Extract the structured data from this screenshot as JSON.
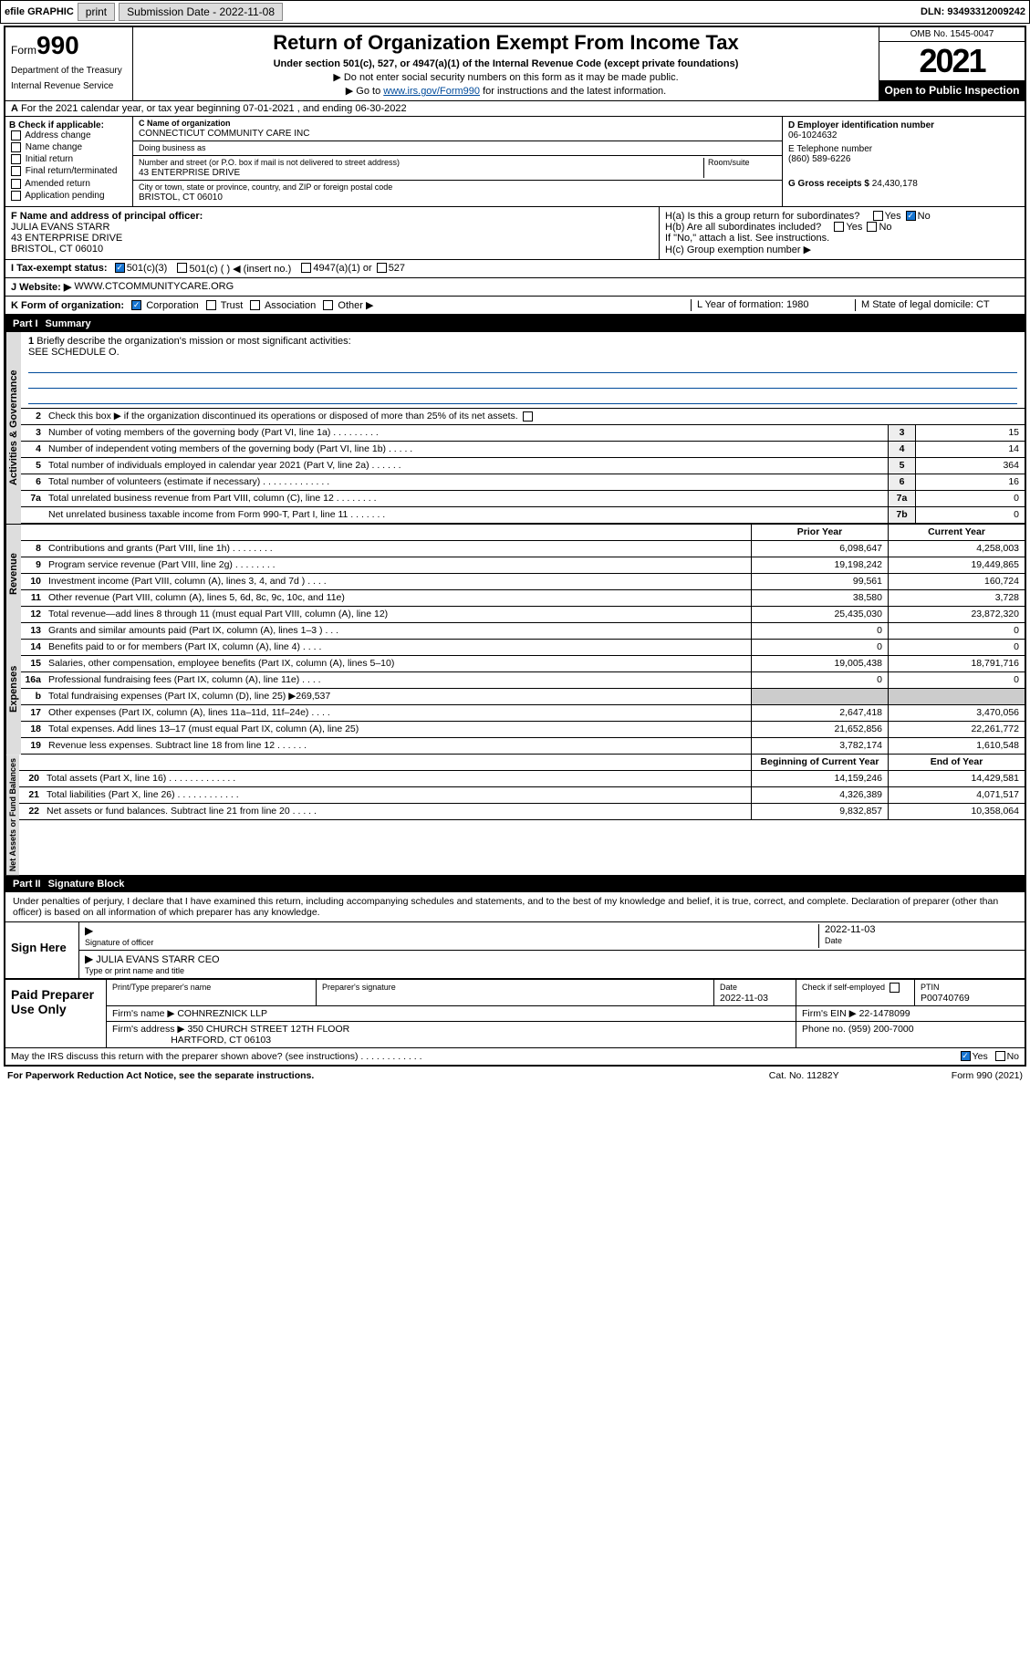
{
  "topbar": {
    "efile": "efile GRAPHIC",
    "print": "print",
    "subdate_label": "Submission Date - 2022-11-08",
    "dln": "DLN: 93493312009242"
  },
  "header": {
    "form_prefix": "Form",
    "form_num": "990",
    "title": "Return of Organization Exempt From Income Tax",
    "subtitle": "Under section 501(c), 527, or 4947(a)(1) of the Internal Revenue Code (except private foundations)",
    "note1": "▶ Do not enter social security numbers on this form as it may be made public.",
    "note2_pre": "▶ Go to ",
    "note2_link": "www.irs.gov/Form990",
    "note2_post": " for instructions and the latest information.",
    "dept": "Department of the Treasury",
    "irs": "Internal Revenue Service",
    "omb": "OMB No. 1545-0047",
    "year": "2021",
    "inspect": "Open to Public Inspection"
  },
  "sectionA": {
    "tax_year": "For the 2021 calendar year, or tax year beginning 07-01-2021  , and ending 06-30-2022",
    "b_label": "B Check if applicable:",
    "b_items": [
      "Address change",
      "Name change",
      "Initial return",
      "Final return/terminated",
      "Amended return",
      "Application pending"
    ],
    "c_name_label": "C Name of organization",
    "c_name": "CONNECTICUT COMMUNITY CARE INC",
    "dba_label": "Doing business as",
    "addr_label": "Number and street (or P.O. box if mail is not delivered to street address)",
    "room_label": "Room/suite",
    "addr": "43 ENTERPRISE DRIVE",
    "city_label": "City or town, state or province, country, and ZIP or foreign postal code",
    "city": "BRISTOL, CT  06010",
    "d_label": "D Employer identification number",
    "d_val": "06-1024632",
    "e_label": "E Telephone number",
    "e_val": "(860) 589-6226",
    "g_label": "G Gross receipts $",
    "g_val": "24,430,178",
    "f_label": "F Name and address of principal officer:",
    "f_name": "JULIA EVANS STARR",
    "f_addr": "43 ENTERPRISE DRIVE",
    "f_city": "BRISTOL, CT  06010",
    "ha": "H(a) Is this a group return for subordinates?",
    "hb": "H(b) Are all subordinates included?",
    "hb_note": "If \"No,\" attach a list. See instructions.",
    "hc": "H(c) Group exemption number ▶",
    "yes": "Yes",
    "no": "No",
    "i_label": "I   Tax-exempt status:",
    "i_501c3": "501(c)(3)",
    "i_501c": "501(c) (  ) ◀ (insert no.)",
    "i_4947": "4947(a)(1) or",
    "i_527": "527",
    "j_label": "J   Website: ▶",
    "j_val": "WWW.CTCOMMUNITYCARE.ORG",
    "k_label": "K Form of organization:",
    "k_corp": "Corporation",
    "k_trust": "Trust",
    "k_assoc": "Association",
    "k_other": "Other ▶",
    "l_label": "L Year of formation: 1980",
    "m_label": "M State of legal domicile: CT"
  },
  "part1": {
    "label": "Part I",
    "title": "Summary",
    "q1": "Briefly describe the organization's mission or most significant activities:",
    "q1_val": "SEE SCHEDULE O.",
    "q2": "Check this box ▶  if the organization discontinued its operations or disposed of more than 25% of its net assets.",
    "sections": {
      "gov": "Activities & Governance",
      "rev": "Revenue",
      "exp": "Expenses",
      "net": "Net Assets or Fund Balances"
    },
    "gov_lines": [
      {
        "n": "3",
        "t": "Number of voting members of the governing body (Part VI, line 1a)  .  .  .  .  .  .  .  .  .",
        "b": "3",
        "v": "15"
      },
      {
        "n": "4",
        "t": "Number of independent voting members of the governing body (Part VI, line 1b)  .  .  .  .  .",
        "b": "4",
        "v": "14"
      },
      {
        "n": "5",
        "t": "Total number of individuals employed in calendar year 2021 (Part V, line 2a)  .  .  .  .  .  .",
        "b": "5",
        "v": "364"
      },
      {
        "n": "6",
        "t": "Total number of volunteers (estimate if necessary)  .  .  .  .  .  .  .  .  .  .  .  .  .",
        "b": "6",
        "v": "16"
      },
      {
        "n": "7a",
        "t": "Total unrelated business revenue from Part VIII, column (C), line 12  .  .  .  .  .  .  .  .",
        "b": "7a",
        "v": "0"
      },
      {
        "n": "",
        "t": "Net unrelated business taxable income from Form 990-T, Part I, line 11  .  .  .  .  .  .  .",
        "b": "7b",
        "v": "0"
      }
    ],
    "col_prior": "Prior Year",
    "col_current": "Current Year",
    "col_bcy": "Beginning of Current Year",
    "col_eoy": "End of Year",
    "rev_lines": [
      {
        "n": "8",
        "t": "Contributions and grants (Part VIII, line 1h)  .  .  .  .  .  .  .  .",
        "p": "6,098,647",
        "c": "4,258,003"
      },
      {
        "n": "9",
        "t": "Program service revenue (Part VIII, line 2g)  .  .  .  .  .  .  .  .",
        "p": "19,198,242",
        "c": "19,449,865"
      },
      {
        "n": "10",
        "t": "Investment income (Part VIII, column (A), lines 3, 4, and 7d )  .  .  .  .",
        "p": "99,561",
        "c": "160,724"
      },
      {
        "n": "11",
        "t": "Other revenue (Part VIII, column (A), lines 5, 6d, 8c, 9c, 10c, and 11e)",
        "p": "38,580",
        "c": "3,728"
      },
      {
        "n": "12",
        "t": "Total revenue—add lines 8 through 11 (must equal Part VIII, column (A), line 12)",
        "p": "25,435,030",
        "c": "23,872,320"
      }
    ],
    "exp_lines": [
      {
        "n": "13",
        "t": "Grants and similar amounts paid (Part IX, column (A), lines 1–3 )  .  .  .",
        "p": "0",
        "c": "0"
      },
      {
        "n": "14",
        "t": "Benefits paid to or for members (Part IX, column (A), line 4)  .  .  .  .",
        "p": "0",
        "c": "0"
      },
      {
        "n": "15",
        "t": "Salaries, other compensation, employee benefits (Part IX, column (A), lines 5–10)",
        "p": "19,005,438",
        "c": "18,791,716"
      },
      {
        "n": "16a",
        "t": "Professional fundraising fees (Part IX, column (A), line 11e)  .  .  .  .",
        "p": "0",
        "c": "0"
      },
      {
        "n": "b",
        "t": "Total fundraising expenses (Part IX, column (D), line 25) ▶269,537",
        "p": "",
        "c": "",
        "shade": true
      },
      {
        "n": "17",
        "t": "Other expenses (Part IX, column (A), lines 11a–11d, 11f–24e)  .  .  .  .",
        "p": "2,647,418",
        "c": "3,470,056"
      },
      {
        "n": "18",
        "t": "Total expenses. Add lines 13–17 (must equal Part IX, column (A), line 25)",
        "p": "21,652,856",
        "c": "22,261,772"
      },
      {
        "n": "19",
        "t": "Revenue less expenses. Subtract line 18 from line 12  .  .  .  .  .  .",
        "p": "3,782,174",
        "c": "1,610,548"
      }
    ],
    "net_lines": [
      {
        "n": "20",
        "t": "Total assets (Part X, line 16)  .  .  .  .  .  .  .  .  .  .  .  .  .",
        "p": "14,159,246",
        "c": "14,429,581"
      },
      {
        "n": "21",
        "t": "Total liabilities (Part X, line 26)  .  .  .  .  .  .  .  .  .  .  .  .",
        "p": "4,326,389",
        "c": "4,071,517"
      },
      {
        "n": "22",
        "t": "Net assets or fund balances. Subtract line 21 from line 20  .  .  .  .  .",
        "p": "9,832,857",
        "c": "10,358,064"
      }
    ]
  },
  "part2": {
    "label": "Part II",
    "title": "Signature Block",
    "decl": "Under penalties of perjury, I declare that I have examined this return, including accompanying schedules and statements, and to the best of my knowledge and belief, it is true, correct, and complete. Declaration of preparer (other than officer) is based on all information of which preparer has any knowledge.",
    "sign_here": "Sign Here",
    "sig_label": "Signature of officer",
    "date_label": "Date",
    "date_val": "2022-11-03",
    "name_label": "Type or print name and title",
    "name_val": "JULIA EVANS STARR  CEO",
    "paid": "Paid Preparer Use Only",
    "prep_name_label": "Print/Type preparer's name",
    "prep_sig_label": "Preparer's signature",
    "prep_date": "2022-11-03",
    "check_self": "Check     if self-employed",
    "ptin_label": "PTIN",
    "ptin": "P00740769",
    "firm_name_label": "Firm's name   ▶",
    "firm_name": "COHNREZNICK LLP",
    "firm_ein_label": "Firm's EIN ▶",
    "firm_ein": "22-1478099",
    "firm_addr_label": "Firm's address ▶",
    "firm_addr": "350 CHURCH STREET 12TH FLOOR",
    "firm_city": "HARTFORD, CT  06103",
    "phone_label": "Phone no.",
    "phone": "(959) 200-7000",
    "may_irs": "May the IRS discuss this return with the preparer shown above? (see instructions)  .  .  .  .  .  .  .  .  .  .  .  .",
    "paperwork": "For Paperwork Reduction Act Notice, see the separate instructions.",
    "catno": "Cat. No. 11282Y",
    "formpg": "Form 990 (2021)"
  }
}
